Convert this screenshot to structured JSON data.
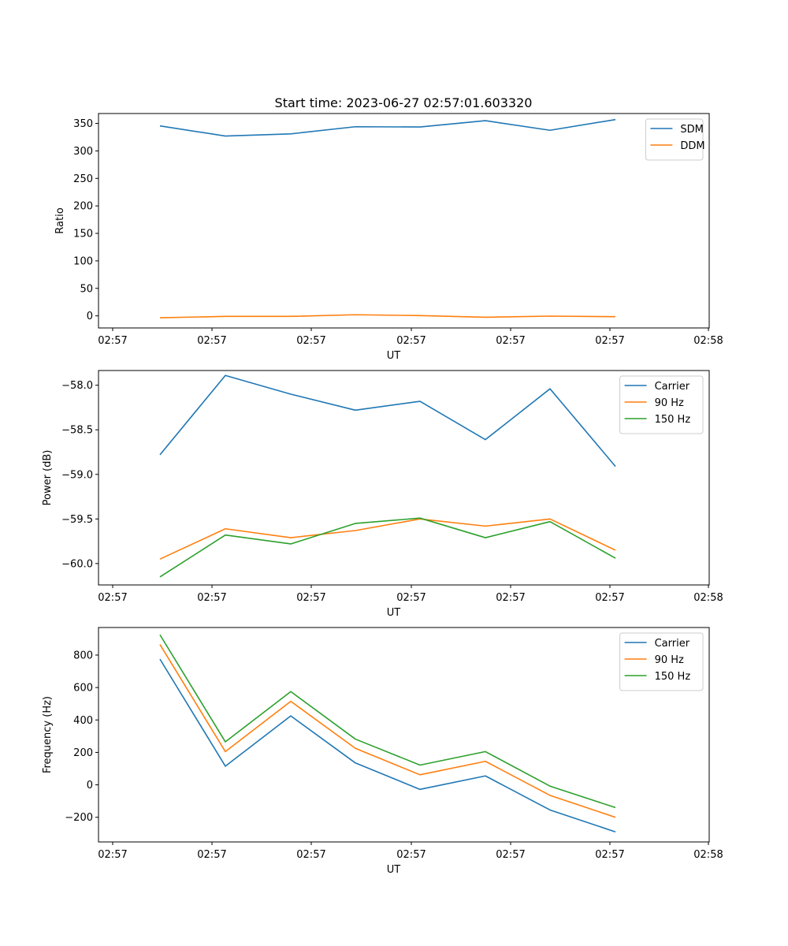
{
  "title": "Start time: 2023-06-27 02:57:01.603320",
  "colors": {
    "blue": "#1f77b4",
    "orange": "#ff7f0e",
    "green": "#2ca02c"
  },
  "chart_data": [
    {
      "type": "line",
      "title": "",
      "xlabel": "UT",
      "ylabel": "Ratio",
      "x_tick_labels": [
        "02:57",
        "02:57",
        "02:57",
        "02:57",
        "02:57",
        "02:57",
        "02:58"
      ],
      "y_ticks": [
        0,
        50,
        100,
        150,
        200,
        250,
        300,
        350
      ],
      "y_tick_labels": [
        "0",
        "50",
        "100",
        "150",
        "200",
        "250",
        "300",
        "350"
      ],
      "ylim": [
        -22,
        368
      ],
      "legend_position": "top-right",
      "grid": false,
      "series": [
        {
          "name": "SDM",
          "color": "#1f77b4",
          "values": [
            345.5,
            327,
            331,
            344,
            343.5,
            355,
            337.5,
            357
          ]
        },
        {
          "name": "DDM",
          "color": "#ff7f0e",
          "values": [
            -3.5,
            -1,
            -1,
            2,
            0.5,
            -2.5,
            -0.5,
            -1.5
          ]
        }
      ]
    },
    {
      "type": "line",
      "title": "",
      "xlabel": "UT",
      "ylabel": "Power (dB)",
      "x_tick_labels": [
        "02:57",
        "02:57",
        "02:57",
        "02:57",
        "02:57",
        "02:57",
        "02:58"
      ],
      "y_ticks": [
        -60.0,
        -59.5,
        -59.0,
        -58.5,
        -58.0
      ],
      "y_tick_labels": [
        "−60.0",
        "−59.5",
        "−59.0",
        "−58.5",
        "−58.0"
      ],
      "ylim": [
        -60.24,
        -57.835
      ],
      "legend_position": "top-right",
      "grid": false,
      "series": [
        {
          "name": "Carrier",
          "color": "#1f77b4",
          "values": [
            -58.78,
            -57.89,
            -58.1,
            -58.28,
            -58.18,
            -58.61,
            -58.04,
            -58.91
          ]
        },
        {
          "name": "90 Hz",
          "color": "#ff7f0e",
          "values": [
            -59.95,
            -59.61,
            -59.71,
            -59.63,
            -59.5,
            -59.58,
            -59.5,
            -59.85
          ]
        },
        {
          "name": "150 Hz",
          "color": "#2ca02c",
          "values": [
            -60.15,
            -59.68,
            -59.78,
            -59.55,
            -59.49,
            -59.71,
            -59.53,
            -59.94
          ]
        }
      ]
    },
    {
      "type": "line",
      "title": "",
      "xlabel": "UT",
      "ylabel": "Frequency (Hz)",
      "x_tick_labels": [
        "02:57",
        "02:57",
        "02:57",
        "02:57",
        "02:57",
        "02:57",
        "02:58"
      ],
      "y_ticks": [
        -200,
        0,
        200,
        400,
        600,
        800
      ],
      "y_tick_labels": [
        "−200",
        "0",
        "200",
        "400",
        "600",
        "800"
      ],
      "ylim": [
        -352,
        970
      ],
      "legend_position": "top-right",
      "grid": false,
      "series": [
        {
          "name": "Carrier",
          "color": "#1f77b4",
          "values": [
            775,
            115,
            425,
            135,
            -28,
            55,
            -155,
            -290
          ]
        },
        {
          "name": "90 Hz",
          "color": "#ff7f0e",
          "values": [
            865,
            205,
            515,
            225,
            62,
            145,
            -65,
            -200
          ]
        },
        {
          "name": "150 Hz",
          "color": "#2ca02c",
          "values": [
            925,
            265,
            575,
            282,
            122,
            205,
            -8,
            -140
          ]
        }
      ]
    }
  ]
}
